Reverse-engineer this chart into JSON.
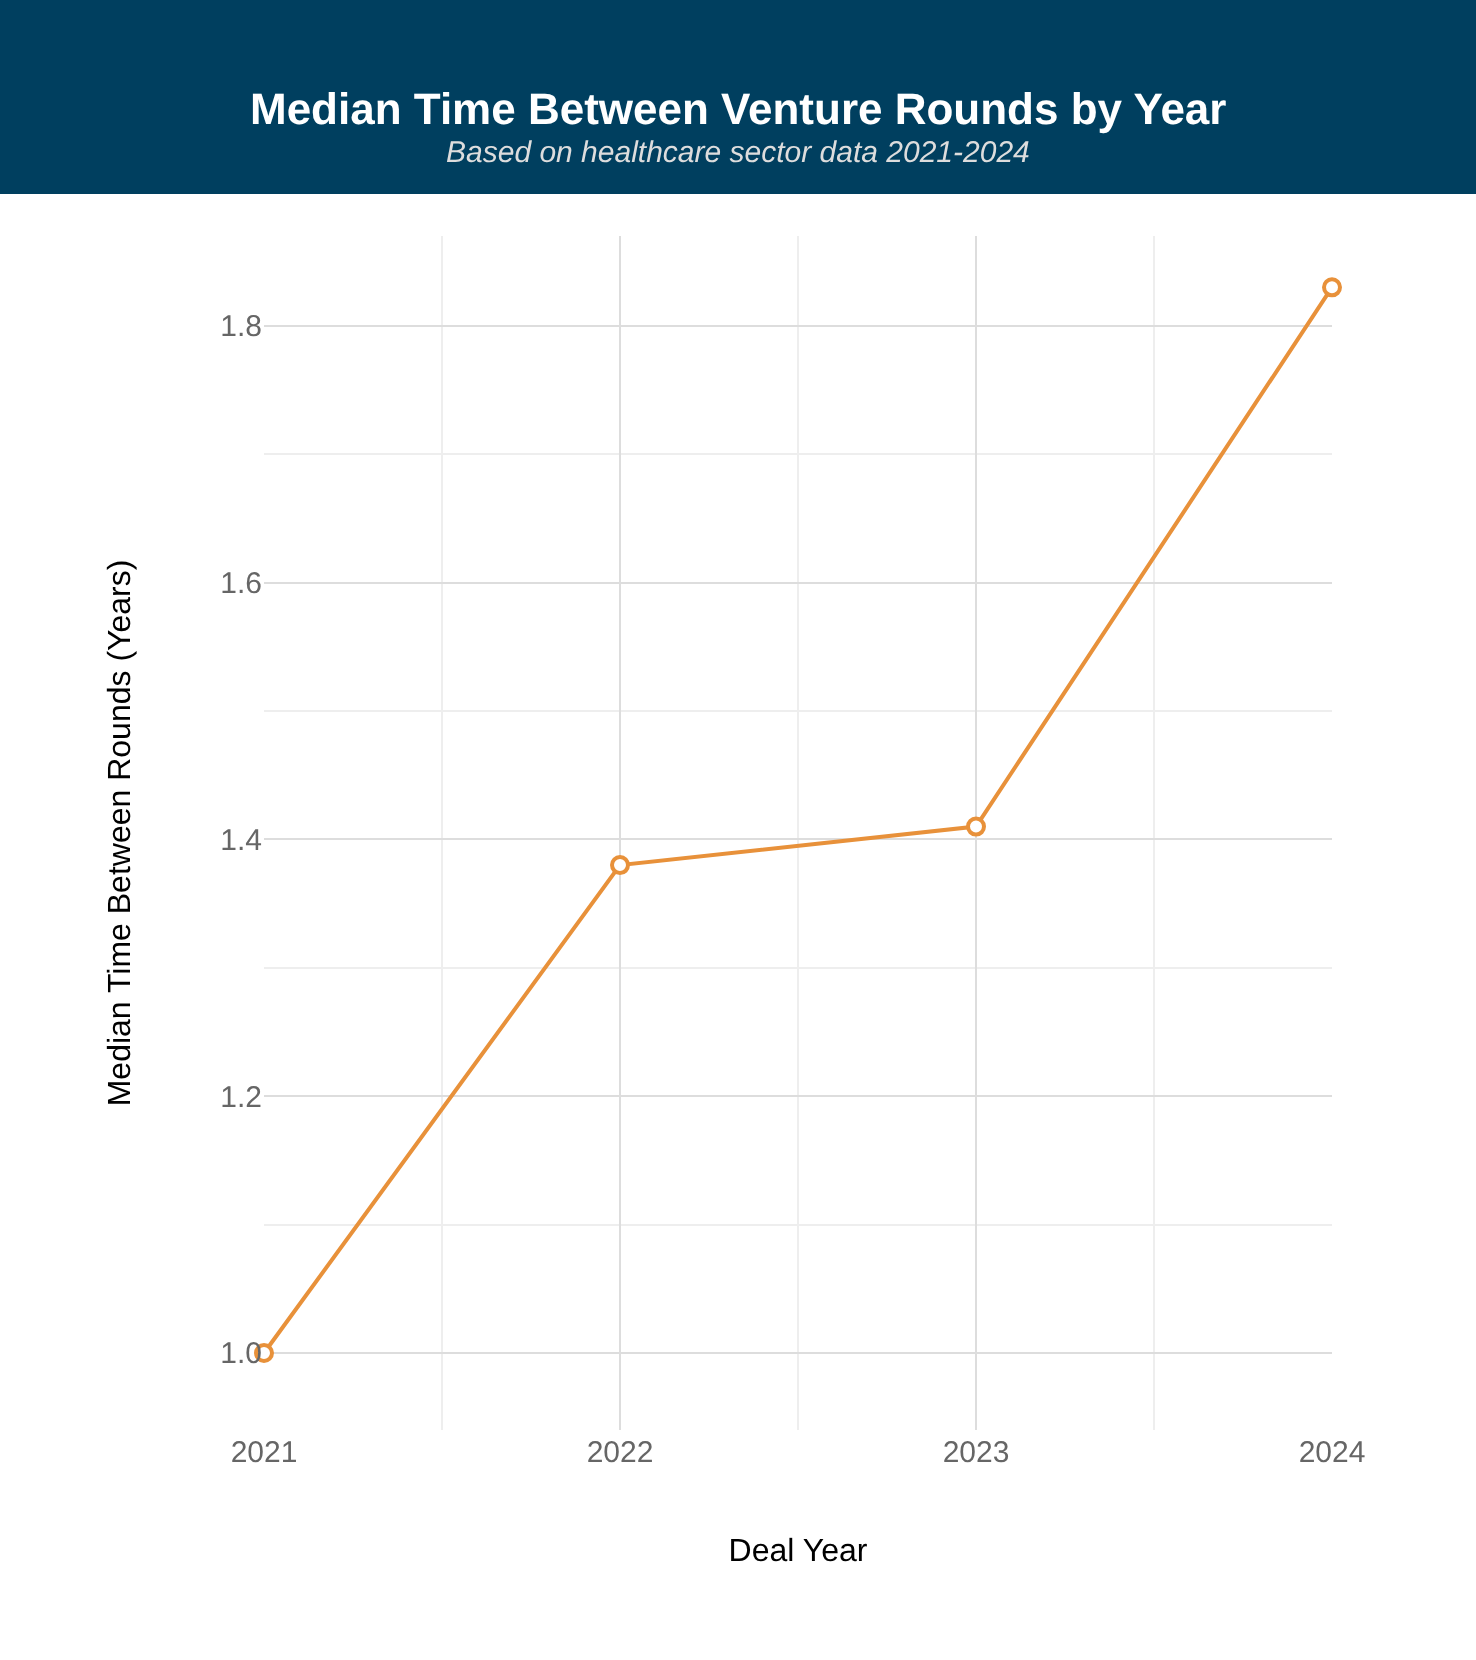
{
  "chart_data": {
    "type": "line",
    "title": "Median Time Between Venture Rounds by Year",
    "subtitle": "Based on healthcare sector data 2021-2024",
    "xlabel": "Deal Year",
    "ylabel": "Median Time Between Rounds (Years)",
    "x": [
      2021,
      2022,
      2023,
      2024
    ],
    "series": [
      {
        "color": "#e8913a",
        "values": [
          1.0,
          1.38,
          1.41,
          1.83
        ]
      }
    ],
    "xlim": [
      2021,
      2024
    ],
    "xticks": [
      2021,
      2022,
      2023,
      2024
    ],
    "ylim": [
      0.94,
      1.87
    ],
    "yticks": [
      {
        "value": 1.0,
        "label": "1.0"
      },
      {
        "value": 1.2,
        "label": "1.2"
      },
      {
        "value": 1.4,
        "label": "1.4"
      },
      {
        "value": 1.6,
        "label": "1.6"
      },
      {
        "value": 1.8,
        "label": "1.8"
      }
    ],
    "grid": true,
    "marker": "circle",
    "line_style": "solid"
  }
}
